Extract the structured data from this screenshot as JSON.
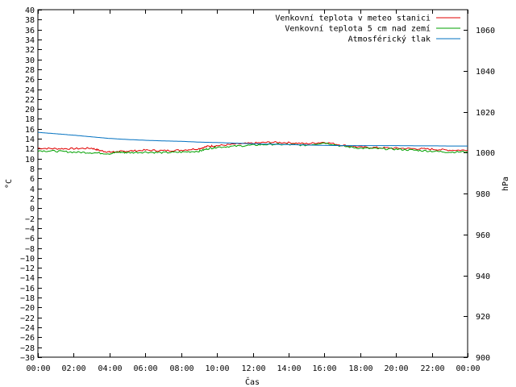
{
  "chart_data": {
    "type": "line",
    "xlabel": "Čas",
    "ylabel": "°C",
    "y2label": "hPa",
    "x_ticks": [
      "00:00",
      "02:00",
      "04:00",
      "06:00",
      "08:00",
      "10:00",
      "12:00",
      "14:00",
      "16:00",
      "18:00",
      "20:00",
      "22:00",
      "00:00"
    ],
    "x_range_hours": [
      0,
      24
    ],
    "ylim": [
      -30,
      40
    ],
    "y_tick_step": 2,
    "y2lim": [
      900,
      1070
    ],
    "y2_ticks": [
      900,
      920,
      940,
      960,
      980,
      1000,
      1020,
      1040,
      1060
    ],
    "legend_position": "top-right",
    "series": [
      {
        "name": "Venkovní teplota v meteo stanici",
        "axis": "left",
        "color": "#e00000",
        "points": [
          [
            0,
            12.1
          ],
          [
            1,
            12.0
          ],
          [
            2,
            12.0
          ],
          [
            3,
            12.1
          ],
          [
            3.5,
            11.6
          ],
          [
            4,
            11.3
          ],
          [
            4.5,
            11.4
          ],
          [
            5,
            11.5
          ],
          [
            6,
            11.7
          ],
          [
            7,
            11.6
          ],
          [
            8,
            11.7
          ],
          [
            9,
            12.0
          ],
          [
            9.5,
            12.5
          ],
          [
            10,
            12.6
          ],
          [
            11,
            12.9
          ],
          [
            12,
            13.1
          ],
          [
            13,
            13.3
          ],
          [
            14,
            13.2
          ],
          [
            15,
            13.0
          ],
          [
            16,
            13.3
          ],
          [
            17,
            12.7
          ],
          [
            18,
            12.3
          ],
          [
            19,
            12.2
          ],
          [
            20,
            12.1
          ],
          [
            21,
            12.0
          ],
          [
            22,
            11.9
          ],
          [
            23,
            11.7
          ],
          [
            24,
            11.7
          ]
        ]
      },
      {
        "name": "Venkovní teplota 5 cm nad zemí",
        "axis": "left",
        "color": "#00a000",
        "points": [
          [
            0,
            11.6
          ],
          [
            1,
            11.5
          ],
          [
            2,
            11.3
          ],
          [
            3,
            11.2
          ],
          [
            4,
            11.0
          ],
          [
            4.5,
            11.3
          ],
          [
            5,
            11.2
          ],
          [
            6,
            11.3
          ],
          [
            7,
            11.2
          ],
          [
            8,
            11.3
          ],
          [
            9,
            11.5
          ],
          [
            9.5,
            12.0
          ],
          [
            10,
            12.3
          ],
          [
            11,
            12.5
          ],
          [
            12,
            12.7
          ],
          [
            13,
            12.9
          ],
          [
            14,
            12.8
          ],
          [
            15,
            12.7
          ],
          [
            16,
            13.2
          ],
          [
            17,
            12.5
          ],
          [
            18,
            12.1
          ],
          [
            19,
            12.0
          ],
          [
            20,
            11.9
          ],
          [
            21,
            11.7
          ],
          [
            22,
            11.5
          ],
          [
            23,
            11.3
          ],
          [
            24,
            11.4
          ]
        ]
      },
      {
        "name": "Atmosférický tlak",
        "axis": "right",
        "color": "#0070c0",
        "points": [
          [
            0,
            1010
          ],
          [
            1,
            1009.3
          ],
          [
            2,
            1008.6
          ],
          [
            3,
            1007.8
          ],
          [
            4,
            1007.0
          ],
          [
            5,
            1006.5
          ],
          [
            6,
            1006.1
          ],
          [
            7,
            1005.8
          ],
          [
            8,
            1005.6
          ],
          [
            9,
            1005.2
          ],
          [
            10,
            1005.0
          ],
          [
            11,
            1004.7
          ],
          [
            12,
            1004.4
          ],
          [
            13,
            1004.2
          ],
          [
            14,
            1004.0
          ],
          [
            15,
            1003.8
          ],
          [
            16,
            1003.6
          ],
          [
            17,
            1003.5
          ],
          [
            18,
            1003.5
          ],
          [
            19,
            1003.5
          ],
          [
            20,
            1003.5
          ],
          [
            21,
            1003.4
          ],
          [
            22,
            1003.4
          ],
          [
            23,
            1003.3
          ],
          [
            24,
            1003.3
          ]
        ]
      }
    ]
  }
}
